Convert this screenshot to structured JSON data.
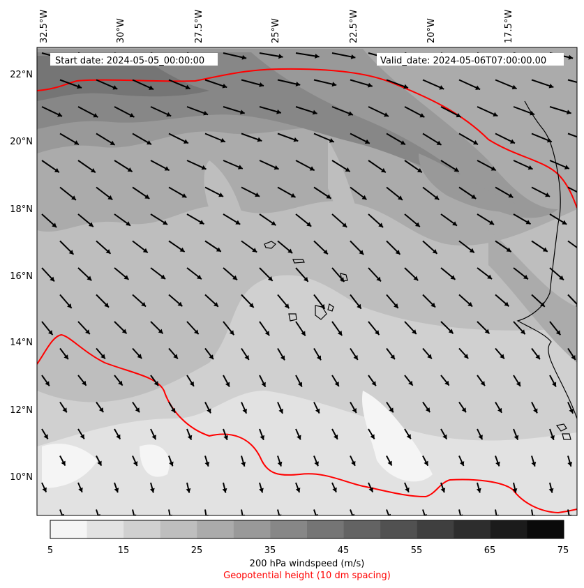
{
  "map": {
    "start_label": "Start date: 2024-05-05_00:00:00",
    "valid_label": "Valid_date: 2024-05-06T07:00:00.00",
    "lon_labels": [
      "32.5°W",
      "30°W",
      "27.5°W",
      "25°W",
      "22.5°W",
      "20°W",
      "17.5°W"
    ],
    "lat_labels": [
      "22°N",
      "20°N",
      "18°N",
      "16°N",
      "14°N",
      "12°N",
      "10°N"
    ],
    "extent": {
      "lon_min": -32.9,
      "lon_max": -15.1,
      "lat_min": 8.9,
      "lat_max": 22.8
    }
  },
  "colorbar": {
    "ticks": [
      "5",
      "15",
      "25",
      "35",
      "45",
      "55",
      "65",
      "75"
    ],
    "colors": [
      "#f5f5f5",
      "#e2e2e2",
      "#d0d0d0",
      "#bebebe",
      "#ababab",
      "#999999",
      "#878787",
      "#757575",
      "#636363",
      "#515151",
      "#3f3f3f",
      "#2d2d2d",
      "#1b1b1b",
      "#0a0a0a"
    ],
    "label": "200 hPa windspeed (m/s)",
    "sublabel": "Geopotential height (10 dm spacing)",
    "sublabel_color": "#ff0000"
  }
}
